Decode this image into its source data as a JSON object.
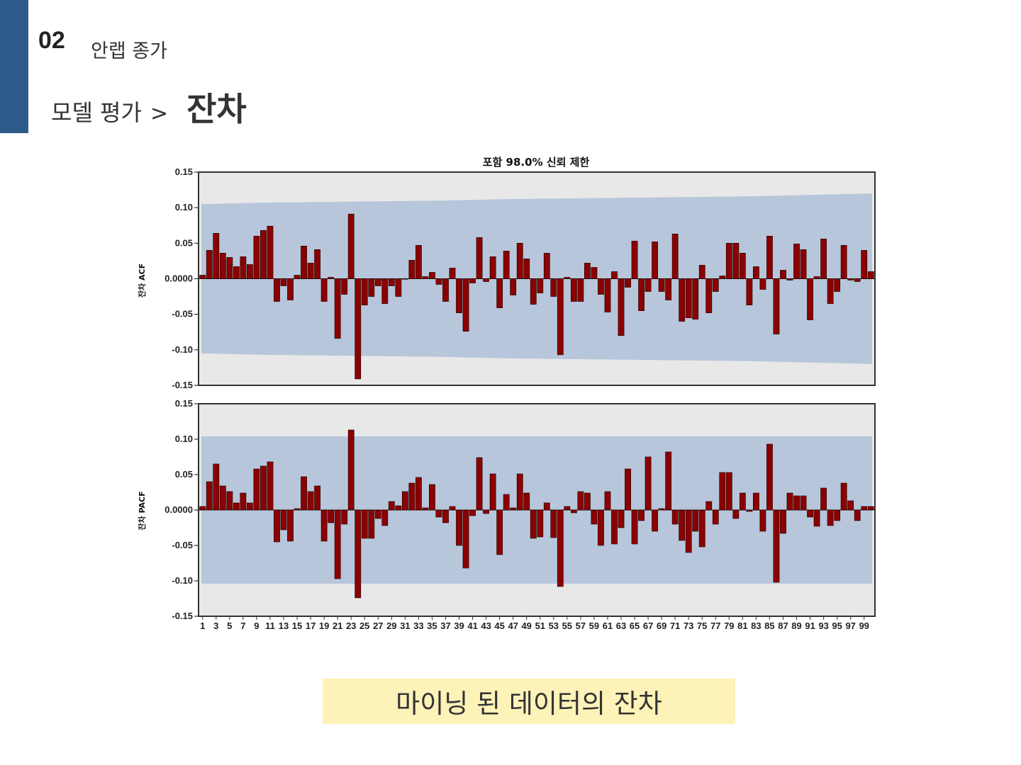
{
  "header": {
    "section_number": "02",
    "section_name": "안랩 종가",
    "breadcrumb_parent": "모델 평가",
    "breadcrumb_separator": ">",
    "breadcrumb_current": "잔차"
  },
  "caption": "마이닝 된 데이터의 잔차",
  "colors": {
    "accent": "#2e5a8c",
    "bar": "#8b0000",
    "confidence_band": "#b8c6db",
    "plot_background": "#e8e8e8",
    "caption_background": "#fdf2b8"
  },
  "chart_data": [
    {
      "type": "bar",
      "title": "포함 98.0% 신뢰 제한",
      "ylabel": "잔차 ACF",
      "xlabel": "",
      "ylim": [
        -0.15,
        0.15
      ],
      "yticks": [
        "0.15",
        "0.10",
        "0.05",
        "0.0000",
        "-0.05",
        "-0.10",
        "-0.15"
      ],
      "grid": false,
      "legend": "none",
      "lags": [
        1,
        100
      ],
      "x_tick_labels": [
        "1",
        "3",
        "5",
        "7",
        "9",
        "11",
        "13",
        "15",
        "17",
        "19",
        "21",
        "23",
        "25",
        "27",
        "29",
        "31",
        "33",
        "35",
        "37",
        "39",
        "41",
        "43",
        "45",
        "47",
        "49",
        "51",
        "53",
        "55",
        "57",
        "59",
        "61",
        "63",
        "65",
        "67",
        "69",
        "71",
        "73",
        "75",
        "77",
        "79",
        "81",
        "83",
        "85",
        "87",
        "89",
        "91",
        "93",
        "95",
        "97",
        "99"
      ],
      "confidence_limit_upper": [
        0.105,
        0.107,
        0.108,
        0.109,
        0.11,
        0.112,
        0.113,
        0.114,
        0.115,
        0.116,
        0.118,
        0.12
      ],
      "confidence_limit_lower": [
        -0.105,
        -0.107,
        -0.108,
        -0.109,
        -0.11,
        -0.112,
        -0.113,
        -0.114,
        -0.115,
        -0.116,
        -0.118,
        -0.12
      ],
      "values": [
        0.005,
        0.04,
        0.064,
        0.036,
        0.03,
        0.017,
        0.031,
        0.02,
        0.06,
        0.068,
        0.074,
        -0.032,
        -0.01,
        -0.03,
        0.005,
        0.046,
        0.022,
        0.041,
        -0.032,
        0.002,
        -0.084,
        -0.022,
        0.091,
        -0.141,
        -0.037,
        -0.025,
        -0.01,
        -0.035,
        -0.01,
        -0.025,
        0.0,
        0.026,
        0.047,
        0.003,
        0.009,
        -0.008,
        -0.032,
        0.015,
        -0.048,
        -0.074,
        -0.006,
        0.058,
        -0.004,
        0.031,
        -0.041,
        0.039,
        -0.023,
        0.05,
        0.028,
        -0.036,
        -0.02,
        0.036,
        -0.025,
        -0.107,
        0.002,
        -0.032,
        -0.032,
        0.022,
        0.016,
        -0.022,
        -0.047,
        0.01,
        -0.08,
        -0.012,
        0.053,
        -0.045,
        -0.018,
        0.052,
        -0.018,
        -0.03,
        0.063,
        -0.06,
        -0.055,
        -0.057,
        0.019,
        -0.048,
        -0.018,
        0.004,
        0.05,
        0.05,
        0.036,
        -0.037,
        0.017,
        -0.015,
        0.06,
        -0.078,
        0.012,
        -0.002,
        0.049,
        0.041,
        -0.058,
        0.003,
        0.056,
        -0.035,
        -0.018,
        0.047,
        -0.002,
        -0.004,
        0.04,
        0.01
      ]
    },
    {
      "type": "bar",
      "title": "",
      "ylabel": "잔차 PACF",
      "xlabel": "",
      "ylim": [
        -0.15,
        0.15
      ],
      "yticks": [
        "0.15",
        "0.10",
        "0.05",
        "0.0000",
        "-0.05",
        "-0.10",
        "-0.15"
      ],
      "grid": false,
      "legend": "none",
      "lags": [
        1,
        100
      ],
      "x_tick_labels": [
        "1",
        "3",
        "5",
        "7",
        "9",
        "11",
        "13",
        "15",
        "17",
        "19",
        "21",
        "23",
        "25",
        "27",
        "29",
        "31",
        "33",
        "35",
        "37",
        "39",
        "41",
        "43",
        "45",
        "47",
        "49",
        "51",
        "53",
        "55",
        "57",
        "59",
        "61",
        "63",
        "65",
        "67",
        "69",
        "71",
        "73",
        "75",
        "77",
        "79",
        "81",
        "83",
        "85",
        "87",
        "89",
        "91",
        "93",
        "95",
        "97",
        "99"
      ],
      "confidence_limit": 0.104,
      "values": [
        0.005,
        0.04,
        0.065,
        0.034,
        0.026,
        0.01,
        0.024,
        0.01,
        0.058,
        0.062,
        0.068,
        -0.045,
        -0.028,
        -0.044,
        0.002,
        0.047,
        0.026,
        0.034,
        -0.044,
        -0.018,
        -0.097,
        -0.02,
        0.113,
        -0.124,
        -0.04,
        -0.04,
        -0.012,
        -0.022,
        0.012,
        0.006,
        0.026,
        0.038,
        0.046,
        0.003,
        0.036,
        -0.01,
        -0.018,
        0.005,
        -0.05,
        -0.082,
        -0.008,
        0.074,
        -0.005,
        0.051,
        -0.063,
        0.022,
        0.003,
        0.051,
        0.024,
        -0.04,
        -0.038,
        0.01,
        -0.039,
        -0.108,
        0.005,
        -0.004,
        0.026,
        0.024,
        -0.02,
        -0.05,
        0.026,
        -0.048,
        -0.025,
        0.058,
        -0.048,
        -0.015,
        0.075,
        -0.03,
        0.002,
        0.082,
        -0.02,
        -0.043,
        -0.06,
        -0.03,
        -0.052,
        0.012,
        -0.02,
        0.053,
        0.053,
        -0.012,
        0.024,
        -0.002,
        0.024,
        -0.03,
        0.093,
        -0.102,
        -0.033,
        0.024,
        0.02,
        0.02,
        -0.01,
        -0.023,
        0.031,
        -0.022,
        -0.015,
        0.038,
        0.013,
        -0.015,
        0.005,
        0.005
      ]
    }
  ]
}
